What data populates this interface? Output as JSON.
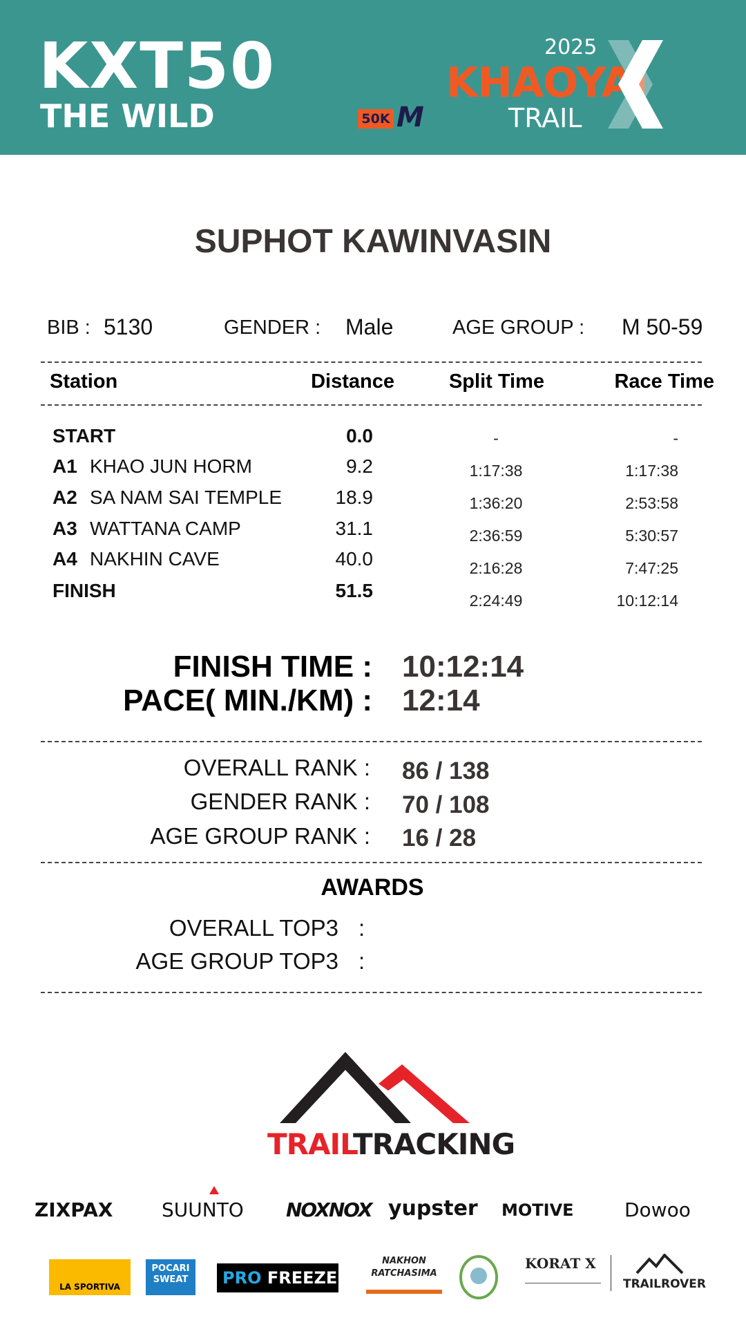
{
  "header": {
    "event_logo": "KXT50",
    "subtitle": "THE WILD",
    "distance_badge": "50K",
    "gender_badge": "M",
    "year": "2025",
    "race_name": "KHAOYAI",
    "race_suffix": "TRAIL",
    "colors": {
      "header_bg": "#3c9690",
      "orange": "#ef5a24",
      "navy": "#1e1b4b"
    }
  },
  "runner": {
    "name": "SUPHOT KAWINVASIN",
    "bib_label": "BIB :",
    "bib": "5130",
    "gender_label": "GENDER  :",
    "gender": "Male",
    "age_group_label": "AGE GROUP  :",
    "age_group": "M 50-59"
  },
  "table": {
    "headers": [
      "Station",
      "Distance",
      "Split Time",
      "Race Time"
    ],
    "rows": [
      {
        "code": "START",
        "name": "",
        "distance": "0.0",
        "split": "-",
        "race": "-"
      },
      {
        "code": "A1",
        "name": "KHAO JUN HORM",
        "distance": "9.2",
        "split": "1:17:38",
        "race": "1:17:38"
      },
      {
        "code": "A2",
        "name": "SA NAM SAI TEMPLE",
        "distance": "18.9",
        "split": "1:36:20",
        "race": "2:53:58"
      },
      {
        "code": "A3",
        "name": "WATTANA CAMP",
        "distance": "31.1",
        "split": "2:36:59",
        "race": "5:30:57"
      },
      {
        "code": "A4",
        "name": "NAKHIN CAVE",
        "distance": "40.0",
        "split": "2:16:28",
        "race": "7:47:25"
      },
      {
        "code": "FINISH",
        "name": "",
        "distance": "51.5",
        "split": "2:24:49",
        "race": "10:12:14"
      }
    ]
  },
  "summary": {
    "finish_label": "FINISH TIME :",
    "finish": "10:12:14",
    "pace_label": "PACE( MIN./KM) :",
    "pace": "12:14"
  },
  "ranks": {
    "overall_label": "OVERALL RANK  :",
    "overall": "86 / 138",
    "gender_label": "GENDER RANK  :",
    "gender": "70 / 108",
    "age_label": "AGE GROUP RANK :",
    "age": "16 / 28"
  },
  "awards": {
    "title": "AWARDS",
    "overall_label": "OVERALL TOP3",
    "age_label": "AGE GROUP TOP3",
    "colon": ":"
  },
  "footer": {
    "logo_a": "TRAIL",
    "logo_b": "TRACKING",
    "sponsors_row1": [
      "ZIXPAX",
      "SUUNTO",
      "NOXNOX",
      "yupster",
      "MOTIVE",
      "Dowoo"
    ],
    "sponsors_row2": [
      "LA SPORTIVA",
      "POCARI SWEAT",
      "PRO",
      "FREEZE",
      "NAKHON RATCHASIMA",
      "KORAT X",
      "TRAILROVER"
    ]
  }
}
